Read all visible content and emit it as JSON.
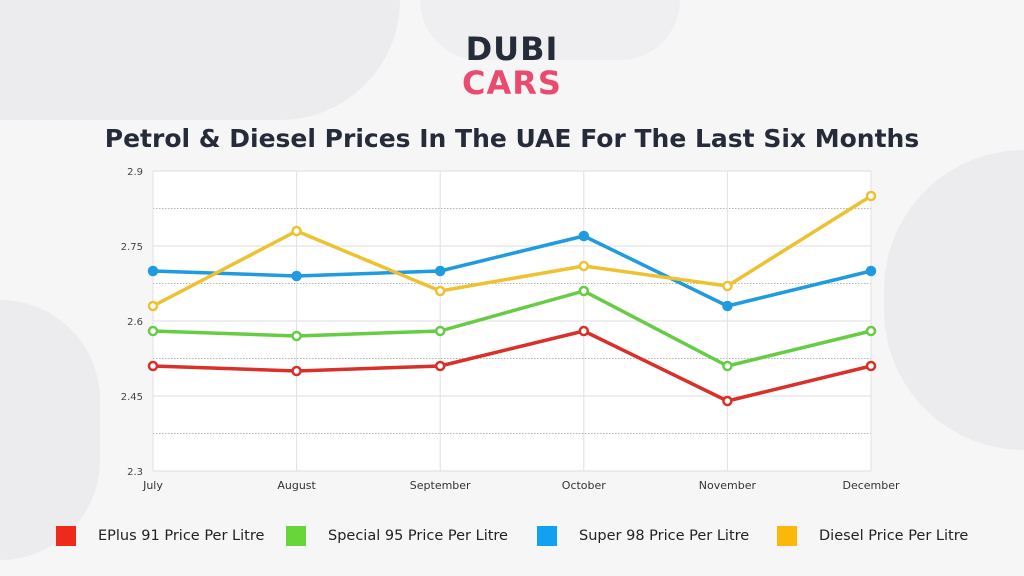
{
  "logo": {
    "line1": "DUBI",
    "line2": "CARS",
    "colors": {
      "line1": "#262b3a",
      "line2": "#ea4a6e"
    }
  },
  "chart_data": {
    "type": "line",
    "title": "Petrol & Diesel Prices In The UAE For The Last Six Months",
    "xlabel": "",
    "ylabel": "",
    "categories": [
      "July",
      "August",
      "September",
      "October",
      "November",
      "December"
    ],
    "ylim": [
      2.3,
      2.9
    ],
    "yticks": [
      "2.3",
      "2.45",
      "2.6",
      "2.75",
      "2.9"
    ],
    "grid": true,
    "legend_position": "bottom",
    "series": [
      {
        "name": "EPlus 91 Price Per Litre",
        "color": "#d9302a",
        "swatch": "#ee2a1c",
        "values": [
          2.51,
          2.5,
          2.51,
          2.58,
          2.44,
          2.51
        ]
      },
      {
        "name": "Special 95 Price Per Litre",
        "color": "#66cc44",
        "swatch": "#66d63a",
        "values": [
          2.58,
          2.57,
          2.58,
          2.66,
          2.51,
          2.58
        ]
      },
      {
        "name": "Super 98 Price Per Litre",
        "color": "#1f9be0",
        "swatch": "#12a0f2",
        "values": [
          2.7,
          2.69,
          2.7,
          2.77,
          2.63,
          2.7
        ]
      },
      {
        "name": "Diesel Price Per Litre",
        "color": "#eec131",
        "swatch": "#fbb80a",
        "values": [
          2.63,
          2.78,
          2.66,
          2.71,
          2.67,
          2.85
        ]
      }
    ]
  }
}
